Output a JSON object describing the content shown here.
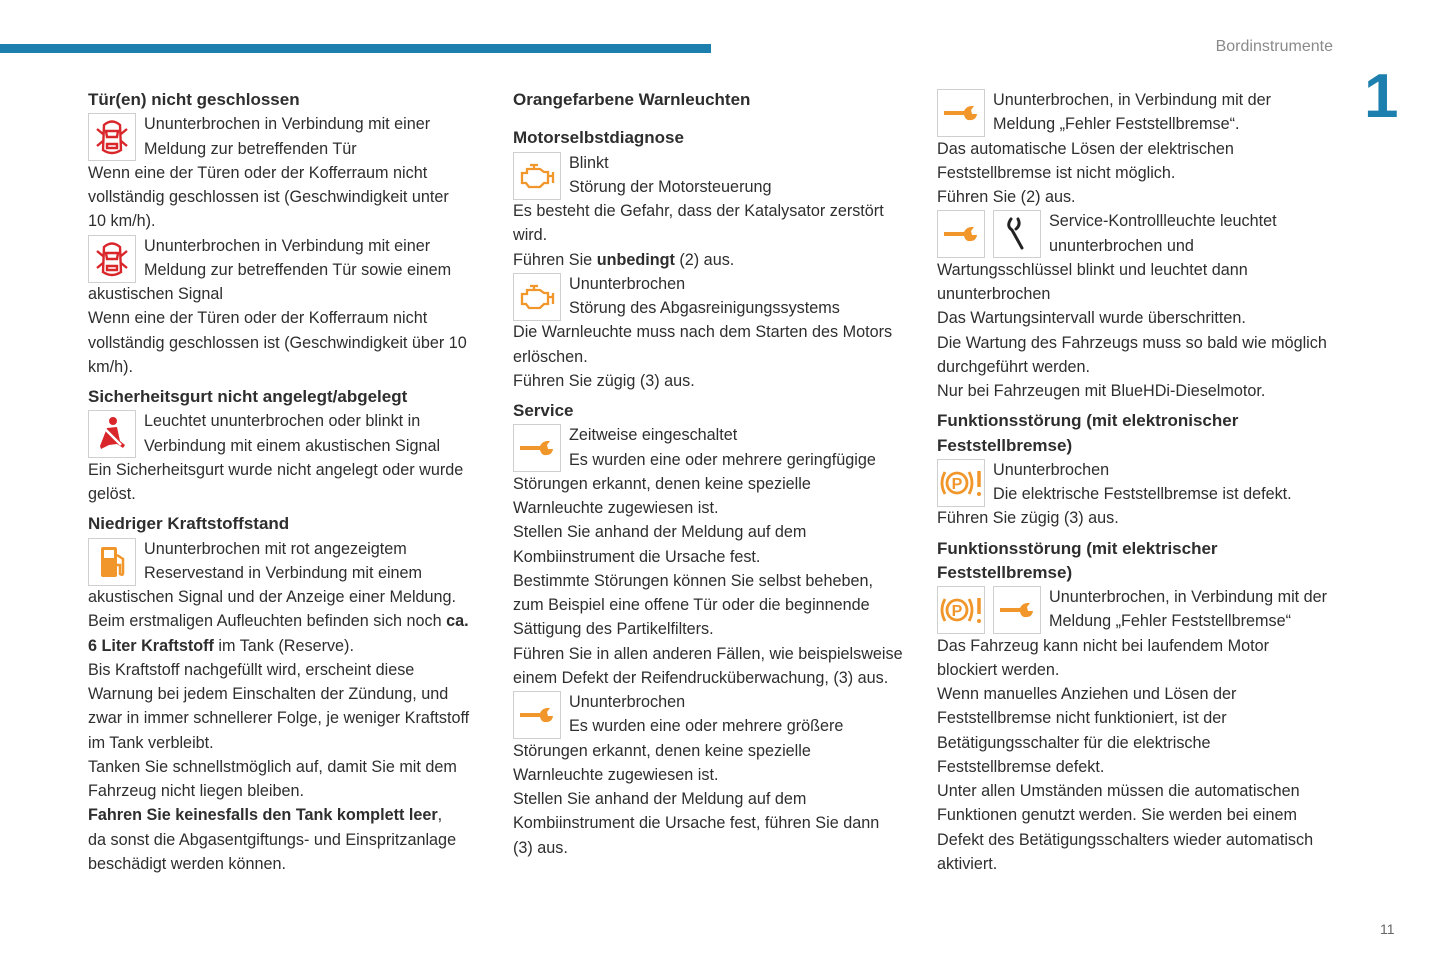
{
  "header": {
    "section": "Bordinstrumente",
    "chapter": "1",
    "page_number": "11",
    "accent": "#1d7fae"
  },
  "colors": {
    "red": "#d9262b",
    "orange": "#f0962a",
    "black": "#222222"
  },
  "columns": [
    [
      {
        "t": "h",
        "text": "Tür(en) nicht geschlossen"
      },
      {
        "t": "i",
        "icons": [
          "door-open-red-icon"
        ],
        "lines": [
          "Ununterbrochen in Verbindung mit einer",
          "Meldung zur betreffenden Tür"
        ]
      },
      {
        "t": "p",
        "lines": [
          "Wenn eine der Türen oder der Kofferraum nicht",
          "vollständig geschlossen ist (Geschwindigkeit unter",
          "10 km/h)."
        ]
      },
      {
        "t": "i",
        "icons": [
          "door-open-red-icon"
        ],
        "lines": [
          "Ununterbrochen in Verbindung mit einer",
          "Meldung zur betreffenden Tür sowie einem"
        ]
      },
      {
        "t": "p",
        "lines": [
          "akustischen Signal",
          "Wenn eine der Türen oder der Kofferraum nicht",
          "vollständig geschlossen ist (Geschwindigkeit über 10",
          "km/h)."
        ]
      },
      {
        "t": "h",
        "text": "Sicherheitsgurt nicht angelegt/abgelegt"
      },
      {
        "t": "i",
        "icons": [
          "seatbelt-red-icon"
        ],
        "lines": [
          "Leuchtet ununterbrochen oder blinkt in",
          "Verbindung mit einem akustischen Signal"
        ]
      },
      {
        "t": "p",
        "lines": [
          "Ein Sicherheitsgurt wurde nicht angelegt oder wurde",
          "gelöst."
        ]
      },
      {
        "t": "h",
        "text": "Niedriger Kraftstoffstand"
      },
      {
        "t": "i",
        "icons": [
          "fuel-pump-orange-icon"
        ],
        "lines": [
          "Ununterbrochen mit rot angezeigtem",
          "Reservestand in Verbindung mit einem"
        ]
      },
      {
        "t": "p",
        "lines": [
          "akustischen Signal und der Anzeige einer Meldung.",
          [
            [
              "Beim erstmaligen Aufleuchten befinden sich noch ",
              0
            ],
            [
              "ca.",
              1
            ]
          ],
          [
            [
              "6 Liter Kraftstoff",
              1
            ],
            [
              " im Tank (Reserve).",
              0
            ]
          ],
          "Bis Kraftstoff nachgefüllt wird, erscheint diese",
          "Warnung bei jedem Einschalten der Zündung, und",
          "zwar in immer schnellerer Folge, je weniger Kraftstoff",
          "im Tank verbleibt.",
          "Tanken Sie schnellstmöglich auf, damit Sie mit dem",
          "Fahrzeug nicht liegen bleiben.",
          [
            [
              "Fahren Sie keinesfalls den Tank komplett leer",
              1
            ],
            [
              ",",
              0
            ]
          ],
          "da sonst die Abgasentgiftungs- und Einspritzanlage",
          "beschädigt werden können."
        ]
      }
    ],
    [
      {
        "t": "h",
        "text": "Orangefarbene Warnleuchten",
        "big": true
      },
      {
        "t": "h",
        "text": "Motorselbstdiagnose",
        "nomargin": true
      },
      {
        "t": "i",
        "icons": [
          "engine-orange-icon"
        ],
        "lines": [
          "Blinkt",
          "Störung der Motorsteuerung"
        ]
      },
      {
        "t": "p",
        "lines": [
          "Es besteht die Gefahr, dass der Katalysator zerstört",
          "wird.",
          [
            [
              "Führen Sie ",
              0
            ],
            [
              "unbedingt",
              1
            ],
            [
              " (2) aus.",
              0
            ]
          ]
        ]
      },
      {
        "t": "i",
        "icons": [
          "engine-orange-icon"
        ],
        "lines": [
          "Ununterbrochen",
          "Störung des Abgasreinigungssystems"
        ]
      },
      {
        "t": "p",
        "lines": [
          "Die Warnleuchte muss nach dem Starten des Motors",
          "erlöschen.",
          "Führen Sie zügig (3) aus."
        ]
      },
      {
        "t": "h",
        "text": "Service"
      },
      {
        "t": "i",
        "icons": [
          "wrench-orange-icon"
        ],
        "lines": [
          "Zeitweise eingeschaltet",
          "Es wurden eine oder mehrere geringfügige"
        ]
      },
      {
        "t": "p",
        "lines": [
          "Störungen erkannt, denen keine spezielle",
          "Warnleuchte zugewiesen ist.",
          "Stellen Sie anhand der Meldung auf dem",
          "Kombiinstrument die Ursache fest.",
          "Bestimmte Störungen können Sie selbst beheben,",
          "zum Beispiel eine offene Tür oder die beginnende",
          "Sättigung des Partikelfilters.",
          "Führen Sie in allen anderen Fällen, wie beispielsweise",
          "einem Defekt der Reifendrucküberwachung, (3) aus."
        ]
      },
      {
        "t": "i",
        "icons": [
          "wrench-orange-icon"
        ],
        "lines": [
          "Ununterbrochen",
          "Es wurden eine oder mehrere größere"
        ]
      },
      {
        "t": "p",
        "lines": [
          "Störungen erkannt, denen keine spezielle",
          "Warnleuchte zugewiesen ist.",
          "Stellen Sie anhand der Meldung auf dem",
          "Kombiinstrument die Ursache fest, führen Sie dann",
          "(3) aus."
        ]
      }
    ],
    [
      {
        "t": "i",
        "icons": [
          "wrench-orange-icon"
        ],
        "lines": [
          "Ununterbrochen, in Verbindung mit der",
          "Meldung „Fehler Feststellbremse“."
        ]
      },
      {
        "t": "p",
        "lines": [
          "Das automatische Lösen der elektrischen",
          "Feststellbremse ist nicht möglich.",
          "Führen Sie (2) aus."
        ]
      },
      {
        "t": "i",
        "icons": [
          "wrench-orange-icon",
          "service-key-black-icon"
        ],
        "lines": [
          "Service-Kontrollleuchte leuchtet",
          "ununterbrochen und"
        ]
      },
      {
        "t": "p",
        "lines": [
          "Wartungsschlüssel blinkt und leuchtet dann",
          "ununterbrochen",
          "Das Wartungsintervall wurde überschritten.",
          "Die Wartung des Fahrzeugs muss so bald wie möglich",
          "durchgeführt werden.",
          "Nur bei Fahrzeugen mit BlueHDi-Dieselmotor."
        ]
      },
      {
        "t": "h",
        "text": "Funktionsstörung (mit elektronischer",
        "text2": "Feststellbremse)"
      },
      {
        "t": "i",
        "icons": [
          "parking-brake-fault-orange-icon"
        ],
        "lines": [
          "Ununterbrochen",
          "Die elektrische Feststellbremse ist defekt."
        ]
      },
      {
        "t": "p",
        "lines": [
          "Führen Sie zügig (3) aus."
        ]
      },
      {
        "t": "h",
        "text": "Funktionsstörung (mit elektrischer",
        "text2": "Feststellbremse)"
      },
      {
        "t": "i",
        "icons": [
          "parking-brake-fault-orange-icon",
          "wrench-orange-icon"
        ],
        "lines": [
          "Ununterbrochen, in Verbindung mit der",
          "Meldung „Fehler Feststellbremse“"
        ]
      },
      {
        "t": "p",
        "lines": [
          "Das Fahrzeug kann nicht bei laufendem Motor",
          "blockiert werden.",
          "Wenn manuelles Anziehen und Lösen der",
          "Feststellbremse nicht funktioniert, ist der",
          "Betätigungsschalter für die elektrische",
          "Feststellbremse defekt.",
          "Unter allen Umständen müssen die automatischen",
          "Funktionen genutzt werden. Sie werden bei einem",
          "Defekt des Betätigungsschalters wieder automatisch",
          "aktiviert."
        ]
      }
    ]
  ]
}
